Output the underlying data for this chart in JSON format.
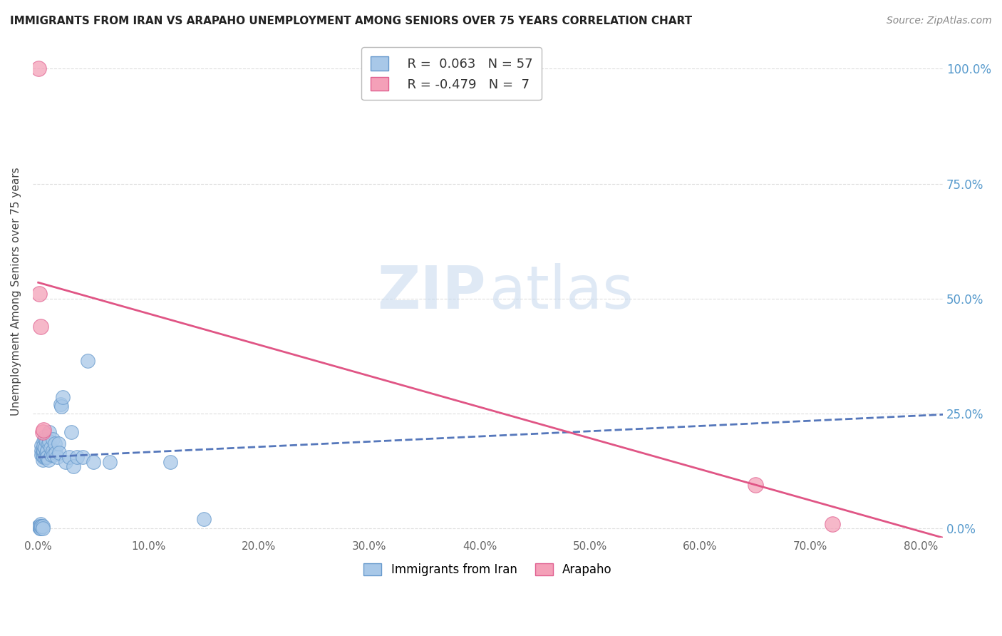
{
  "title": "IMMIGRANTS FROM IRAN VS ARAPAHO UNEMPLOYMENT AMONG SENIORS OVER 75 YEARS CORRELATION CHART",
  "source": "Source: ZipAtlas.com",
  "ylabel": "Unemployment Among Seniors over 75 years",
  "legend_blue_r": "R =  0.063",
  "legend_blue_n": "N = 57",
  "legend_pink_r": "R = -0.479",
  "legend_pink_n": "N =  7",
  "legend_label_blue": "Immigrants from Iran",
  "legend_label_pink": "Arapaho",
  "xlim": [
    -0.005,
    0.82
  ],
  "ylim": [
    -0.02,
    1.05
  ],
  "xticks": [
    0.0,
    0.1,
    0.2,
    0.3,
    0.4,
    0.5,
    0.6,
    0.7,
    0.8
  ],
  "yticks": [
    0.0,
    0.25,
    0.5,
    0.75,
    1.0
  ],
  "blue_scatter_x": [
    0.0005,
    0.001,
    0.0015,
    0.002,
    0.002,
    0.002,
    0.003,
    0.003,
    0.003,
    0.003,
    0.004,
    0.004,
    0.004,
    0.004,
    0.004,
    0.005,
    0.005,
    0.005,
    0.005,
    0.005,
    0.006,
    0.006,
    0.006,
    0.006,
    0.007,
    0.007,
    0.007,
    0.008,
    0.008,
    0.009,
    0.009,
    0.01,
    0.01,
    0.011,
    0.012,
    0.013,
    0.013,
    0.014,
    0.015,
    0.016,
    0.017,
    0.018,
    0.019,
    0.02,
    0.021,
    0.022,
    0.025,
    0.028,
    0.03,
    0.032,
    0.035,
    0.04,
    0.045,
    0.05,
    0.065,
    0.12,
    0.15
  ],
  "blue_scatter_y": [
    0.005,
    0.005,
    0.0,
    0.0,
    0.01,
    0.005,
    0.18,
    0.17,
    0.16,
    0.005,
    0.15,
    0.17,
    0.16,
    0.005,
    0.0,
    0.19,
    0.165,
    0.155,
    0.17,
    0.18,
    0.2,
    0.195,
    0.175,
    0.155,
    0.19,
    0.165,
    0.155,
    0.17,
    0.155,
    0.185,
    0.15,
    0.21,
    0.19,
    0.175,
    0.16,
    0.195,
    0.17,
    0.16,
    0.185,
    0.165,
    0.155,
    0.185,
    0.165,
    0.27,
    0.265,
    0.285,
    0.145,
    0.155,
    0.21,
    0.135,
    0.155,
    0.155,
    0.365,
    0.145,
    0.145,
    0.145,
    0.02
  ],
  "pink_scatter_x": [
    0.0005,
    0.001,
    0.002,
    0.004,
    0.005,
    0.65,
    0.72
  ],
  "pink_scatter_y": [
    1.0,
    0.51,
    0.44,
    0.21,
    0.215,
    0.095,
    0.01
  ],
  "blue_line_x0": 0.0,
  "blue_line_x1": 0.82,
  "blue_line_y0": 0.155,
  "blue_line_y1": 0.248,
  "pink_line_x0": 0.0,
  "pink_line_x1": 0.82,
  "pink_line_y0": 0.535,
  "pink_line_y1": -0.02,
  "bg_color": "#ffffff",
  "blue_color": "#a8c8e8",
  "pink_color": "#f4a0b8",
  "blue_edge_color": "#6699cc",
  "pink_edge_color": "#e06090",
  "blue_line_color": "#5577bb",
  "pink_line_color": "#e05585",
  "grid_color": "#dddddd",
  "right_tick_color": "#5599cc",
  "watermark_zip_color": "#c5d8ee",
  "watermark_atlas_color": "#c5d8ee"
}
